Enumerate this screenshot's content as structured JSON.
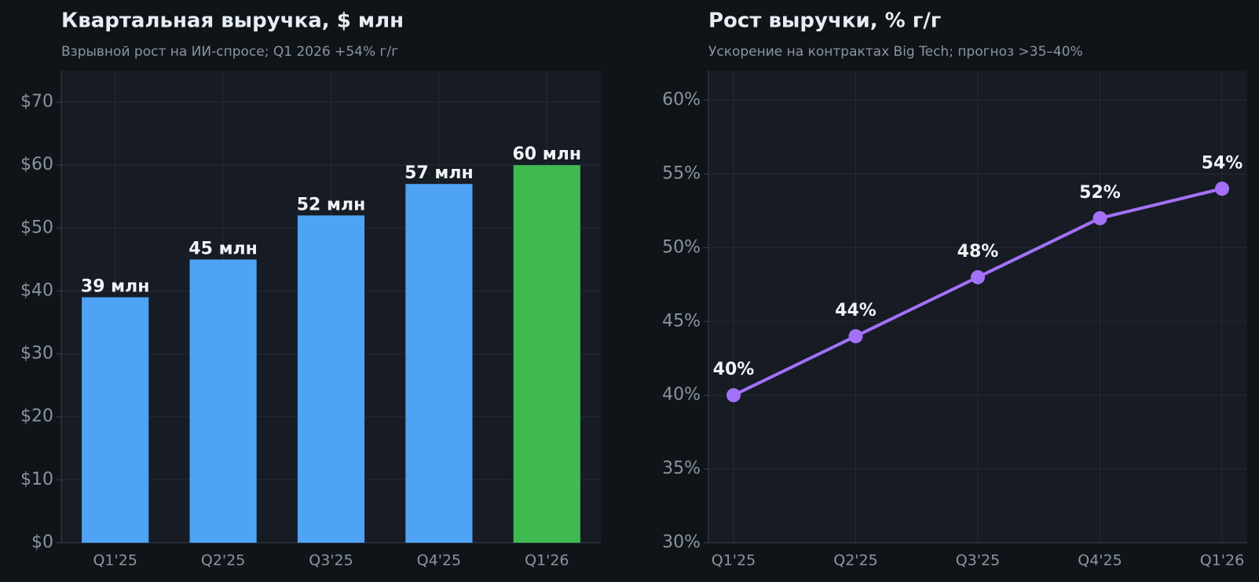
{
  "chart_data": [
    {
      "type": "bar",
      "title": "Квартальная выручка, $ млн",
      "subtitle": "Взрывной рост на ИИ-спросе; Q1 2026 +54% г/г",
      "categories": [
        "Q1'25",
        "Q2'25",
        "Q3'25",
        "Q4'25",
        "Q1'26"
      ],
      "values": [
        39,
        45,
        52,
        57,
        60
      ],
      "value_labels": [
        "39 млн",
        "45 млн",
        "52 млн",
        "57 млн",
        "60 млн"
      ],
      "colors": [
        "#4fa3f5",
        "#4fa3f5",
        "#4fa3f5",
        "#4fa3f5",
        "#3fb950"
      ],
      "ylim": [
        0,
        75
      ],
      "yticks": [
        {
          "value": 0,
          "label": "$0"
        },
        {
          "value": 10,
          "label": "$10"
        },
        {
          "value": 20,
          "label": "$20"
        },
        {
          "value": 30,
          "label": "$30"
        },
        {
          "value": 40,
          "label": "$40"
        },
        {
          "value": 50,
          "label": "$50"
        },
        {
          "value": 60,
          "label": "$60"
        },
        {
          "value": 70,
          "label": "$70"
        }
      ],
      "grid": true
    },
    {
      "type": "line",
      "title": "Рост выручки, % г/г",
      "subtitle": "Ускорение на контрактах Big Tech; прогноз >35–40%",
      "categories": [
        "Q1'25",
        "Q2'25",
        "Q3'25",
        "Q4'25",
        "Q1'26"
      ],
      "values": [
        40,
        44,
        48,
        52,
        54
      ],
      "value_labels": [
        "40%",
        "44%",
        "48%",
        "52%",
        "54%"
      ],
      "color": "#a371f7",
      "ylim": [
        30,
        62
      ],
      "yticks": [
        {
          "value": 30,
          "label": "30%"
        },
        {
          "value": 35,
          "label": "35%"
        },
        {
          "value": 40,
          "label": "40%"
        },
        {
          "value": 45,
          "label": "45%"
        },
        {
          "value": 50,
          "label": "50%"
        },
        {
          "value": 55,
          "label": "55%"
        },
        {
          "value": 60,
          "label": "60%"
        }
      ],
      "grid": true
    }
  ]
}
